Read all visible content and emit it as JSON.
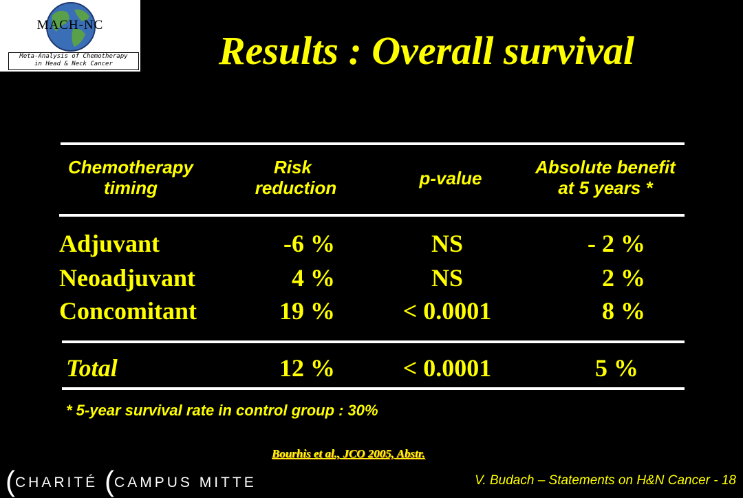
{
  "logo": {
    "acronym": "MACH-NC",
    "subtitle_line1": "Meta-Analysis of Chemotherapy",
    "subtitle_line2": "in Head & Neck Cancer"
  },
  "title": "Results : Overall survival",
  "table": {
    "headers": {
      "timing_line1": "Chemotherapy",
      "timing_line2": "timing",
      "risk_line1": "Risk",
      "risk_line2": "reduction",
      "pvalue": "p-value",
      "benefit_line1": "Absolute benefit",
      "benefit_line2": "at 5 years *"
    },
    "rows": [
      {
        "timing": "Adjuvant",
        "risk": "-6 %",
        "p": "NS",
        "benefit": "- 2 %"
      },
      {
        "timing": "Neoadjuvant",
        "risk": "4 %",
        "p": "NS",
        "benefit": "2 %"
      },
      {
        "timing": "Concomitant",
        "risk": "19 %",
        "p": "< 0.0001",
        "benefit": "8 %"
      }
    ],
    "total": {
      "timing": "Total",
      "risk": "12 %",
      "p": "< 0.0001",
      "benefit": "5 %"
    }
  },
  "footnote": "* 5-year survival rate in control group : 30%",
  "citation": "Bourhis et al., JCO 2005, Abstr.",
  "brand": {
    "open1": "(",
    "word1": "CHARITÉ",
    "open2": "(",
    "word2": "CAMPUS MITTE"
  },
  "author": "V. Budach – Statements on H&N Cancer - 18",
  "colors": {
    "background": "#000000",
    "text": "#ffff00",
    "rules": "#ffffff"
  }
}
